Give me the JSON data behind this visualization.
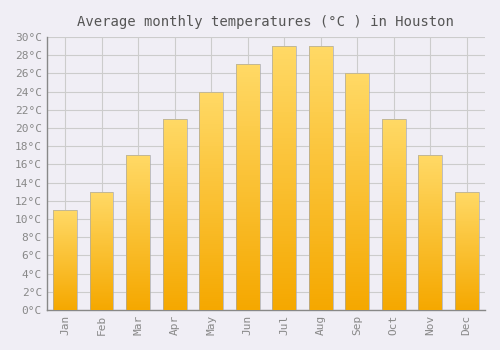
{
  "title": "Average monthly temperatures (°C ) in Houston",
  "months": [
    "Jan",
    "Feb",
    "Mar",
    "Apr",
    "May",
    "Jun",
    "Jul",
    "Aug",
    "Sep",
    "Oct",
    "Nov",
    "Dec"
  ],
  "temperatures": [
    11,
    13,
    17,
    21,
    24,
    27,
    29,
    29,
    26,
    21,
    17,
    13
  ],
  "bar_color_bottom": "#F5A800",
  "bar_color_top": "#FFD966",
  "bar_edge_color": "#AAAAAA",
  "ylim": [
    0,
    30
  ],
  "ytick_step": 2,
  "background_color": "#F0EEF5",
  "plot_bg_color": "#F0EEF5",
  "grid_color": "#CCCCCC",
  "title_fontsize": 10,
  "tick_fontsize": 8,
  "font_family": "monospace",
  "title_color": "#555555",
  "tick_color": "#888888"
}
